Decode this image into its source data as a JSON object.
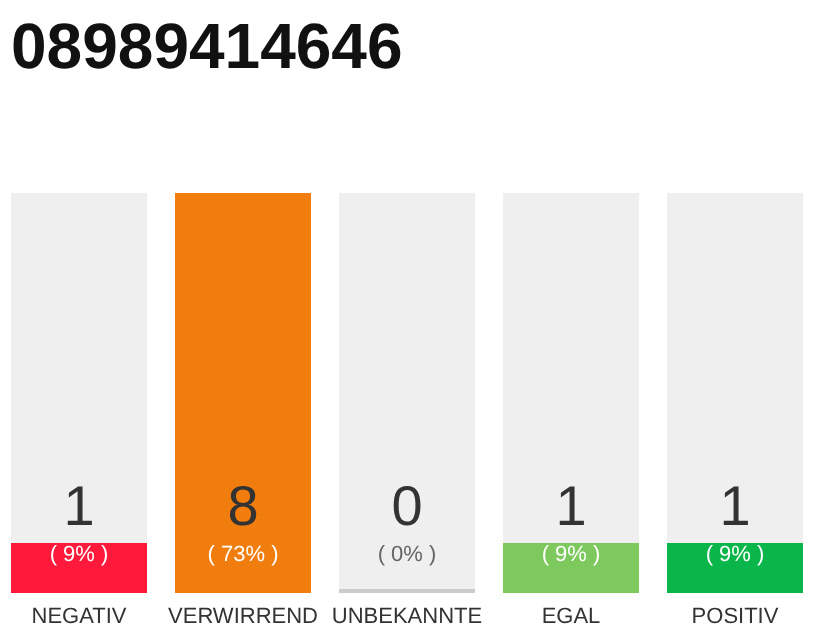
{
  "chart_data": {
    "type": "bar",
    "title": "08989414646",
    "categories": [
      "NEGATIV",
      "VERWIRREND",
      "UNBEKANNTE",
      "EGAL",
      "POSITIV"
    ],
    "values": [
      1,
      8,
      0,
      1,
      1
    ],
    "colors": [
      "#ff1a3c",
      "#f07d0d",
      "#cccccc",
      "#7dc95e",
      "#0ab54a"
    ],
    "data_labels": true,
    "annotations": [
      "( 9% )",
      "( 73% )",
      "( 0% )",
      "( 9% )",
      "( 9% )"
    ]
  }
}
